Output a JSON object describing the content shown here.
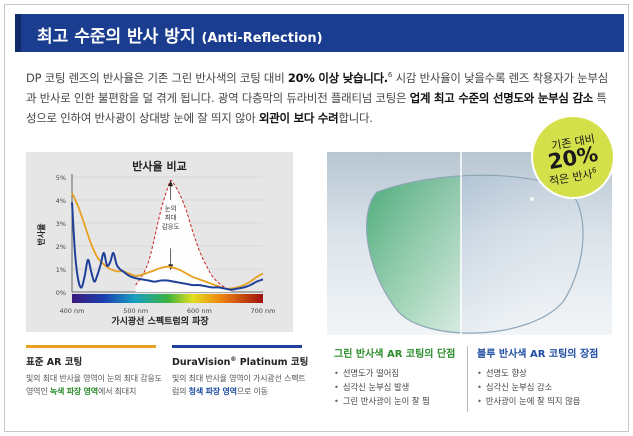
{
  "header": {
    "title_ko": "최고 수준의 반사 방지",
    "title_en": "(Anti-Reflection)"
  },
  "intro": {
    "p1a": "DP 코팅 렌즈의 반사율은 기존 그린 반사색의 코팅 대비 ",
    "p1b": "20% 이상 낮습니다.",
    "p1sup": "6",
    "p1c": " 시감 반사율이 낮을수록 렌즈 착용자가 눈부심과 반사로 인한 불편함을 덜 겪게 됩니다. 광역 다층막의 듀라비전 플래티넘 코팅은 ",
    "p1d": "업계 최고 수준의 선명도와 눈부심 감소",
    "p1e": " 특성으로 인하여 반사광이 상대방 눈에 잘 띄지 않아 ",
    "p1f": "외관이 보다 수려",
    "p1g": "합니다."
  },
  "chart_data": {
    "type": "line",
    "title": "반사율 비교",
    "xlabel": "가시광선 스펙트럼의 파장",
    "ylabel": "반사율",
    "x_ticks": [
      "400 nm",
      "500 nm",
      "600 nm",
      "700 nm"
    ],
    "y_ticks": [
      "0%",
      "1%",
      "2%",
      "3%",
      "4%",
      "5%"
    ],
    "xlim": [
      400,
      700
    ],
    "ylim": [
      0,
      5
    ],
    "annotation": "눈의 최대 감응도",
    "series": [
      {
        "name": "표준 AR 코팅",
        "color": "#e8a020",
        "x": [
          400,
          410,
          420,
          430,
          440,
          450,
          460,
          470,
          480,
          490,
          500,
          510,
          520,
          530,
          540,
          550,
          560,
          570,
          580,
          590,
          600,
          610,
          620,
          630,
          640,
          650,
          660,
          670,
          680,
          690,
          700
        ],
        "values": [
          4.3,
          3.7,
          2.9,
          2.1,
          1.5,
          1.2,
          1.0,
          0.9,
          0.9,
          0.8,
          0.7,
          0.75,
          0.85,
          0.95,
          1.05,
          1.1,
          1.05,
          0.95,
          0.8,
          0.65,
          0.55,
          0.45,
          0.35,
          0.25,
          0.15,
          0.15,
          0.2,
          0.3,
          0.45,
          0.65,
          0.8
        ]
      },
      {
        "name": "DuraVision Platinum 코팅",
        "color": "#1e3f9a",
        "x": [
          400,
          405,
          410,
          415,
          420,
          425,
          430,
          435,
          440,
          445,
          450,
          455,
          460,
          465,
          470,
          475,
          480,
          490,
          500,
          510,
          520,
          530,
          540,
          550,
          560,
          570,
          580,
          590,
          600,
          610,
          620,
          630,
          640,
          650,
          660,
          670,
          680,
          690,
          700
        ],
        "values": [
          3.9,
          1.6,
          0.5,
          0.2,
          0.7,
          1.4,
          0.9,
          0.45,
          0.75,
          1.2,
          1.7,
          1.15,
          1.3,
          1.7,
          1.2,
          1.0,
          0.9,
          0.7,
          0.6,
          0.55,
          0.5,
          0.45,
          0.5,
          0.5,
          0.45,
          0.4,
          0.35,
          0.3,
          0.3,
          0.25,
          0.2,
          0.2,
          0.15,
          0.1,
          0.15,
          0.2,
          0.3,
          0.45,
          0.55
        ]
      },
      {
        "name": "eye-sensitivity",
        "color": "#cc2222",
        "x": [
          500,
          510,
          520,
          530,
          540,
          550,
          555,
          560,
          570,
          580,
          590,
          600,
          610,
          620,
          630,
          640,
          650
        ],
        "values": [
          0.3,
          0.7,
          1.3,
          2.4,
          3.6,
          4.5,
          4.85,
          4.7,
          4.2,
          3.5,
          2.6,
          1.8,
          1.2,
          0.7,
          0.4,
          0.2,
          0.05
        ]
      }
    ],
    "colors": {
      "standard": "#e8a020",
      "platinum": "#1e3f9a",
      "sensitivity": "#cc2222",
      "axis": "#444444"
    }
  },
  "badge": {
    "line1": "기존 대비",
    "line2": "20%",
    "line3": "적은 반사",
    "sup": "6"
  },
  "legend": {
    "standard": {
      "name": "표준 AR 코팅",
      "desc_a": "빛의 최대 반사율 영역이 눈의 최대 감응도 영역인 ",
      "desc_hl": "녹색 파장 영역",
      "desc_b": "에서 최대치"
    },
    "platinum": {
      "name": "DuraVision",
      "name_sup": "®",
      "name_b": " Platinum 코팅",
      "desc_a": "빛의 최대 반사율 영역이 가시광선 스펙트럼의 ",
      "desc_hl": "청색 파장 영역",
      "desc_b": "으로 이동"
    }
  },
  "cons": {
    "title": "그린 반사색 AR 코팅의 단점",
    "items": [
      "선명도가 떨어짐",
      "심각신 눈부심 발생",
      "그린 반사광이 눈이 잘 띔"
    ]
  },
  "pros": {
    "title": "블루 반사색 AR 코팅의 장점",
    "items": [
      "선명도 향상",
      "심각신 눈부심 감소",
      "반사광이 눈에 잘 띄지 않음"
    ]
  }
}
